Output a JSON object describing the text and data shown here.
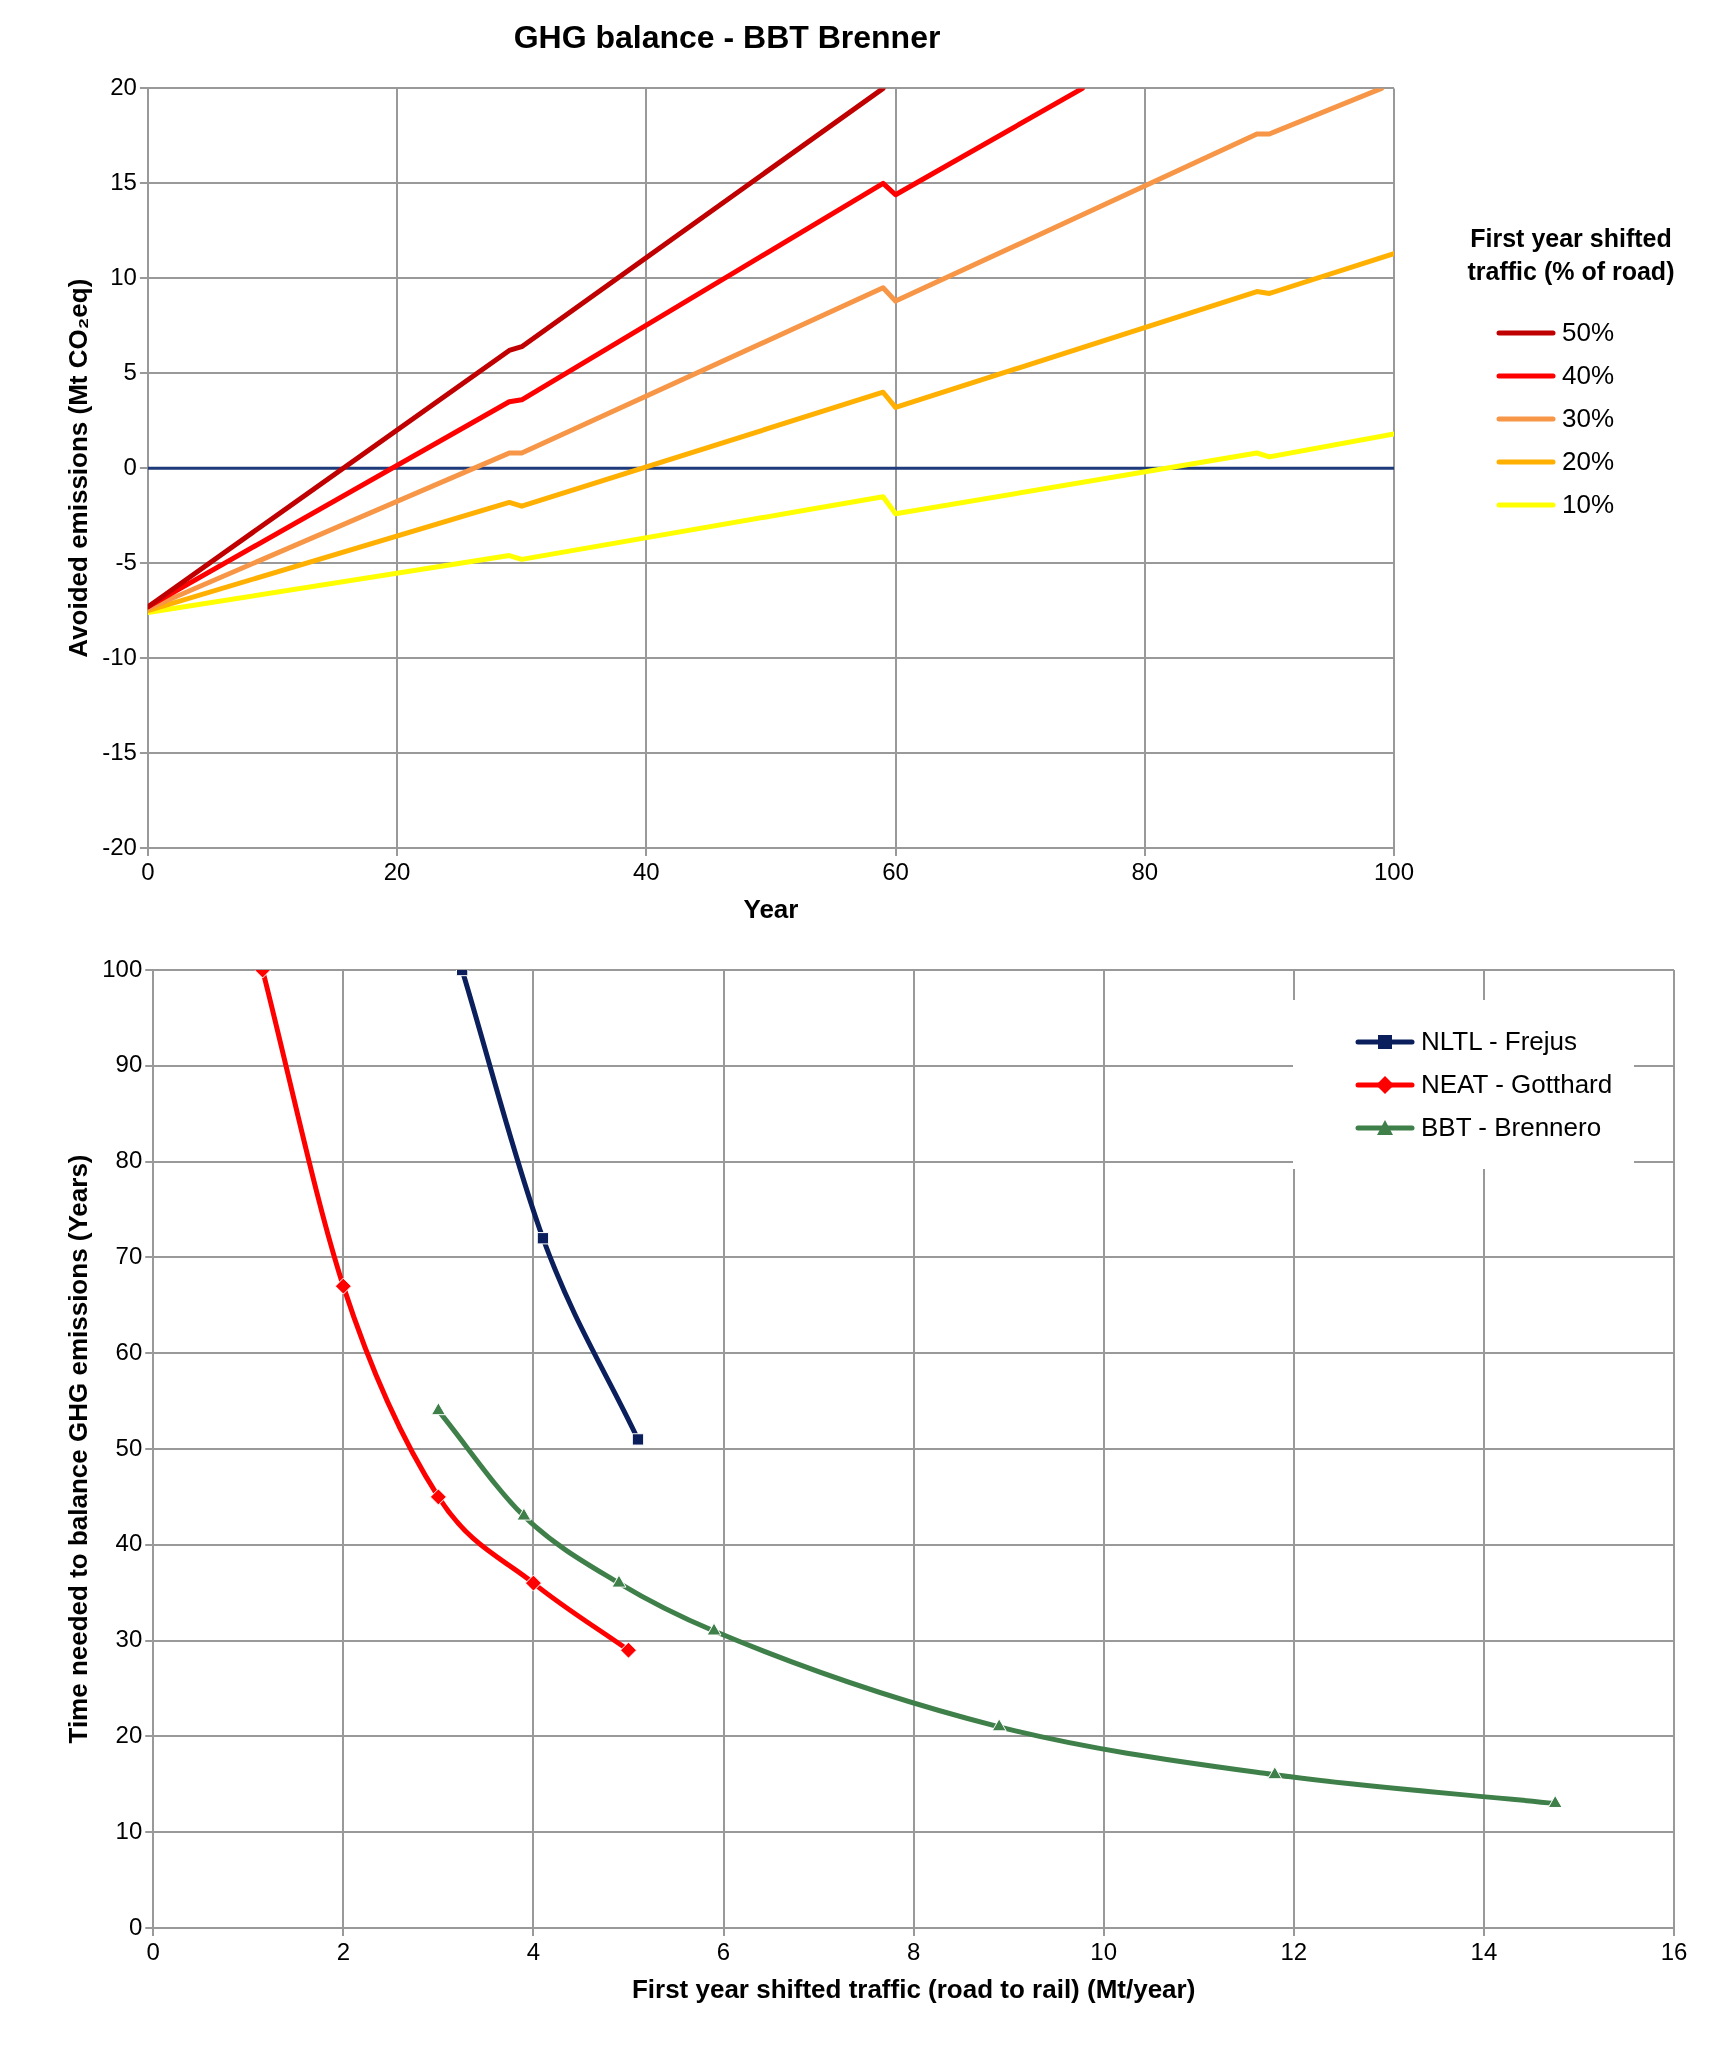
{
  "chart_data": [
    {
      "type": "line",
      "title": "GHG balance - BBT Brenner",
      "xlabel": "Year",
      "ylabel": "Avoided emissions (Mt CO₂eq)",
      "legend_title": "First year shifted traffic (% of road)",
      "xlim": [
        0,
        100
      ],
      "xticks": [
        0,
        20,
        40,
        60,
        80,
        100
      ],
      "ylim": [
        -20,
        20
      ],
      "yticks": [
        -20,
        -15,
        -10,
        -5,
        0,
        5,
        10,
        15,
        20
      ],
      "grid": true,
      "legend": "right",
      "marker": "none",
      "line_style": "solid",
      "ref_lines": [
        {
          "axis": "y",
          "value": 0,
          "color": "#1f3a7a"
        }
      ],
      "series": [
        {
          "name": "50%",
          "color": "#c00000",
          "x": [
            0,
            29,
            30,
            59
          ],
          "values": [
            -7.3,
            6.2,
            6.4,
            20
          ]
        },
        {
          "name": "40%",
          "color": "#ff0000",
          "x": [
            0,
            29,
            30,
            59,
            60,
            75
          ],
          "values": [
            -7.3,
            3.5,
            3.6,
            15,
            14.4,
            20
          ]
        },
        {
          "name": "30%",
          "color": "#f79646",
          "x": [
            0,
            29,
            30,
            59,
            60,
            89,
            90,
            99
          ],
          "values": [
            -7.4,
            0.8,
            0.8,
            9.5,
            8.8,
            17.6,
            17.6,
            20
          ]
        },
        {
          "name": "20%",
          "color": "#ffb000",
          "x": [
            0,
            29,
            30,
            59,
            60,
            89,
            90,
            100
          ],
          "values": [
            -7.5,
            -1.8,
            -2,
            4,
            3.2,
            9.3,
            9.2,
            11.3
          ]
        },
        {
          "name": "10%",
          "color": "#ffff00",
          "x": [
            0,
            29,
            30,
            59,
            60,
            89,
            90,
            100
          ],
          "values": [
            -7.6,
            -4.6,
            -4.8,
            -1.5,
            -2.4,
            0.8,
            0.6,
            1.8
          ]
        }
      ]
    },
    {
      "type": "line",
      "xlabel": "First year shifted traffic (road to rail) (Mt/year)",
      "ylabel": "Time needed to balance GHG emissions (Years)",
      "xlim": [
        0,
        16
      ],
      "xticks": [
        0,
        2,
        4,
        6,
        8,
        10,
        12,
        14,
        16
      ],
      "ylim": [
        0,
        100
      ],
      "yticks": [
        0,
        10,
        20,
        30,
        40,
        50,
        60,
        70,
        80,
        90,
        100
      ],
      "grid": true,
      "legend": "top right",
      "line_style": "solid",
      "series": [
        {
          "name": "NLTL - Frejus",
          "color": "#0a1f5c",
          "marker": "square",
          "x": [
            3.25,
            4.1,
            5.1
          ],
          "values": [
            100,
            72,
            51
          ]
        },
        {
          "name": "NEAT - Gotthard",
          "color": "#ff0000",
          "marker": "diamond",
          "x": [
            1.15,
            2,
            3,
            4,
            5
          ],
          "values": [
            100,
            67,
            45,
            36,
            29
          ]
        },
        {
          "name": "BBT - Brennero",
          "color": "#3f7f4a",
          "marker": "triangle",
          "x": [
            3,
            3.9,
            4.9,
            5.9,
            8.9,
            11.8,
            14.75
          ],
          "values": [
            54,
            43,
            36,
            31,
            21,
            16,
            13
          ]
        }
      ]
    }
  ]
}
